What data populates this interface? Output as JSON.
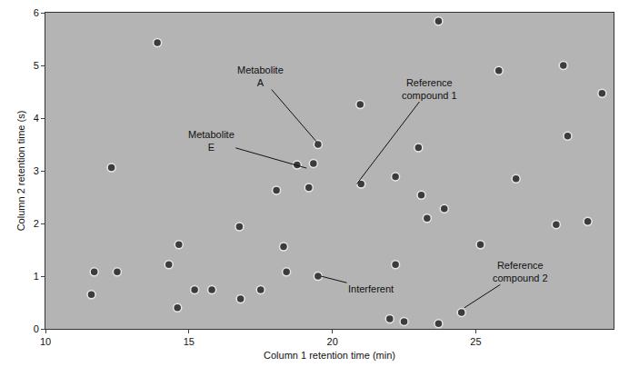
{
  "chart_data": {
    "type": "scatter",
    "x_label": "Column 1 retention time (min)",
    "y_label": "Column 2 retention time (s)",
    "xlim": [
      10,
      29.8
    ],
    "ylim": [
      0,
      6
    ],
    "xticks": [
      10,
      15,
      20,
      25
    ],
    "yticks": [
      0,
      1,
      2,
      3,
      4,
      5,
      6
    ],
    "grid": false,
    "color": "#3c3c3c",
    "marker": "circle",
    "x": [
      13.9,
      16.76,
      18.05,
      18.77,
      19.18,
      19.34,
      19.5,
      21.0,
      20.97,
      22.2,
      22.2,
      23.0,
      23.1,
      23.7,
      23.9,
      25.16,
      26.4,
      25.8,
      28.05,
      27.8,
      28.9,
      28.2,
      29.4,
      24.5,
      19.5,
      18.4,
      18.3,
      17.5,
      16.8,
      15.8,
      15.2,
      14.65,
      14.3,
      12.5,
      11.7,
      11.6,
      12.3,
      14.6,
      22.0,
      22.5,
      23.7,
      23.3
    ],
    "values": [
      5.43,
      1.94,
      2.63,
      3.11,
      2.68,
      3.14,
      3.5,
      2.75,
      4.26,
      2.89,
      1.22,
      3.44,
      2.54,
      5.84,
      2.28,
      1.6,
      2.85,
      4.9,
      5.0,
      1.98,
      2.04,
      3.66,
      4.47,
      0.31,
      1.0,
      1.08,
      1.56,
      0.74,
      0.57,
      0.74,
      0.74,
      1.6,
      1.22,
      1.08,
      1.08,
      0.65,
      3.06,
      0.4,
      0.19,
      0.14,
      0.1,
      2.1
    ],
    "annotations": [
      {
        "text": "Metabolite A",
        "x": 19.45,
        "y": 3.55
      },
      {
        "text": "Metabolite E",
        "x": 19.1,
        "y": 3.05
      },
      {
        "text": "Reference compound 1",
        "x": 20.85,
        "y": 2.75
      },
      {
        "text": "Interferent",
        "x": 19.6,
        "y": 1.0
      },
      {
        "text": "Reference compound 2",
        "x": 24.6,
        "y": 0.4
      }
    ]
  }
}
